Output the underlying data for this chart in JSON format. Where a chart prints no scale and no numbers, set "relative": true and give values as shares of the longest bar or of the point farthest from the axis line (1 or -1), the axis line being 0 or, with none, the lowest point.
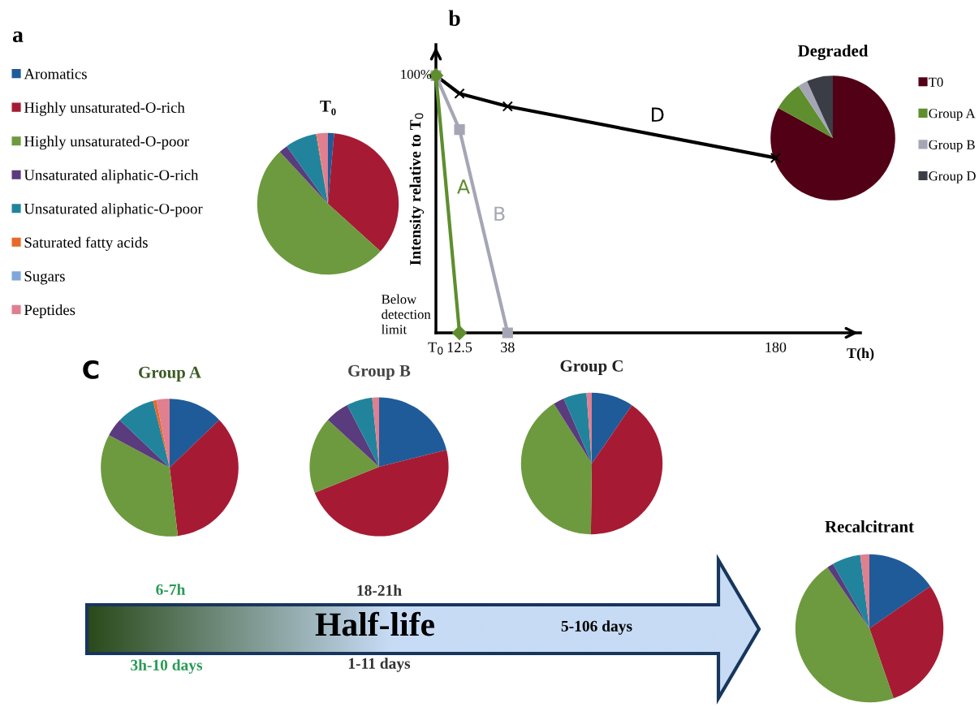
{
  "chart_data": [
    {
      "type": "pie",
      "title": "T₀",
      "annotations": [
        "a"
      ],
      "legend": "left",
      "categories": [
        "Aromatics",
        "Highly unsaturated-O-rich",
        "Highly unsaturated-O-poor",
        "Unsaturated aliphatic-O-rich",
        "Unsaturated aliphatic-O-poor",
        "Saturated fatty acids",
        "Sugars",
        "Peptides"
      ],
      "values": [
        1.4,
        35.3,
        51.4,
        2,
        7.2,
        0.2,
        0,
        2.5
      ],
      "colors": [
        "#1f5b99",
        "#a61b33",
        "#6d9a3e",
        "#5a3b7e",
        "#21849c",
        "#e8682a",
        "#7fa7d9",
        "#e07f90"
      ]
    },
    {
      "type": "line",
      "relative": true,
      "xlabel": "T(h)",
      "ylabel": "Intensity relative to T$_{0}$",
      "annotations": [
        "b",
        "100%",
        "Below detection limit"
      ],
      "xlim": [
        0,
        225
      ],
      "xticks": [
        {
          "value": 0,
          "label": "T$_{0}$"
        },
        12.5,
        38,
        180
      ],
      "series": [
        {
          "name": "D",
          "color": "#000000",
          "marker": "cross",
          "x": [
            0,
            12.5,
            38,
            180
          ],
          "values": [
            1,
            0.93,
            0.88,
            0.68
          ]
        },
        {
          "name": "B",
          "color": "#a5a6b5",
          "marker": "square",
          "x": [
            0,
            12.5,
            38
          ],
          "values": [
            1,
            0.79,
            0
          ]
        },
        {
          "name": "A",
          "color": "#5e8e2e",
          "marker": "diamond",
          "x": [
            0,
            12.5
          ],
          "values": [
            1,
            0
          ]
        }
      ]
    },
    {
      "type": "pie",
      "title": "Degraded",
      "legend": "right",
      "categories": [
        "T0",
        "Group A",
        "Group B",
        "Group D"
      ],
      "values": [
        83,
        7.7,
        2.5,
        6.8
      ],
      "colors": [
        "#520015",
        "#5e8e2e",
        "#a5a6b5",
        "#3a3d45"
      ]
    },
    {
      "type": "pie",
      "title": "Group A",
      "annotations": [
        "C",
        "6-7h",
        "3h-10 days"
      ],
      "categories": [
        null,
        null,
        null,
        null,
        null,
        null,
        null,
        null
      ],
      "values": [
        12.8,
        35.3,
        34.7,
        4.3,
        9,
        0.8,
        0,
        3.1
      ],
      "colors": [
        "#1f5b99",
        "#a61b33",
        "#6d9a3e",
        "#5a3b7e",
        "#21849c",
        "#e8682a",
        "#7fa7d9",
        "#e07f90"
      ]
    },
    {
      "type": "pie",
      "title": "Group B",
      "annotations": [
        "18-21h",
        "Half-life",
        "1-11 days"
      ],
      "categories": [
        null,
        null,
        null,
        null,
        null,
        null,
        null,
        null
      ],
      "values": [
        21.1,
        47.8,
        17.9,
        5.6,
        6,
        0,
        0,
        1.6
      ],
      "colors": [
        "#1f5b99",
        "#a61b33",
        "#6d9a3e",
        "#5a3b7e",
        "#21849c",
        "#e8682a",
        "#7fa7d9",
        "#e07f90"
      ]
    },
    {
      "type": "pie",
      "title": "Group C",
      "annotations": [
        "5-106 days"
      ],
      "categories": [
        null,
        null,
        null,
        null,
        null,
        null,
        null,
        null
      ],
      "values": [
        9.6,
        40.6,
        40.8,
        2.5,
        5.3,
        0,
        0,
        1.2
      ],
      "colors": [
        "#1f5b99",
        "#a61b33",
        "#6d9a3e",
        "#5a3b7e",
        "#21849c",
        "#e8682a",
        "#7fa7d9",
        "#e07f90"
      ]
    },
    {
      "type": "pie",
      "title": "Recalcitrant",
      "categories": [
        null,
        null,
        null,
        null,
        null,
        null,
        null,
        null
      ],
      "values": [
        15.4,
        29.3,
        45.7,
        1.4,
        6.2,
        0,
        0,
        2
      ],
      "colors": [
        "#1f5b99",
        "#a61b33",
        "#6d9a3e",
        "#5a3b7e",
        "#21849c",
        "#e8682a",
        "#7fa7d9",
        "#e07f90"
      ]
    }
  ]
}
